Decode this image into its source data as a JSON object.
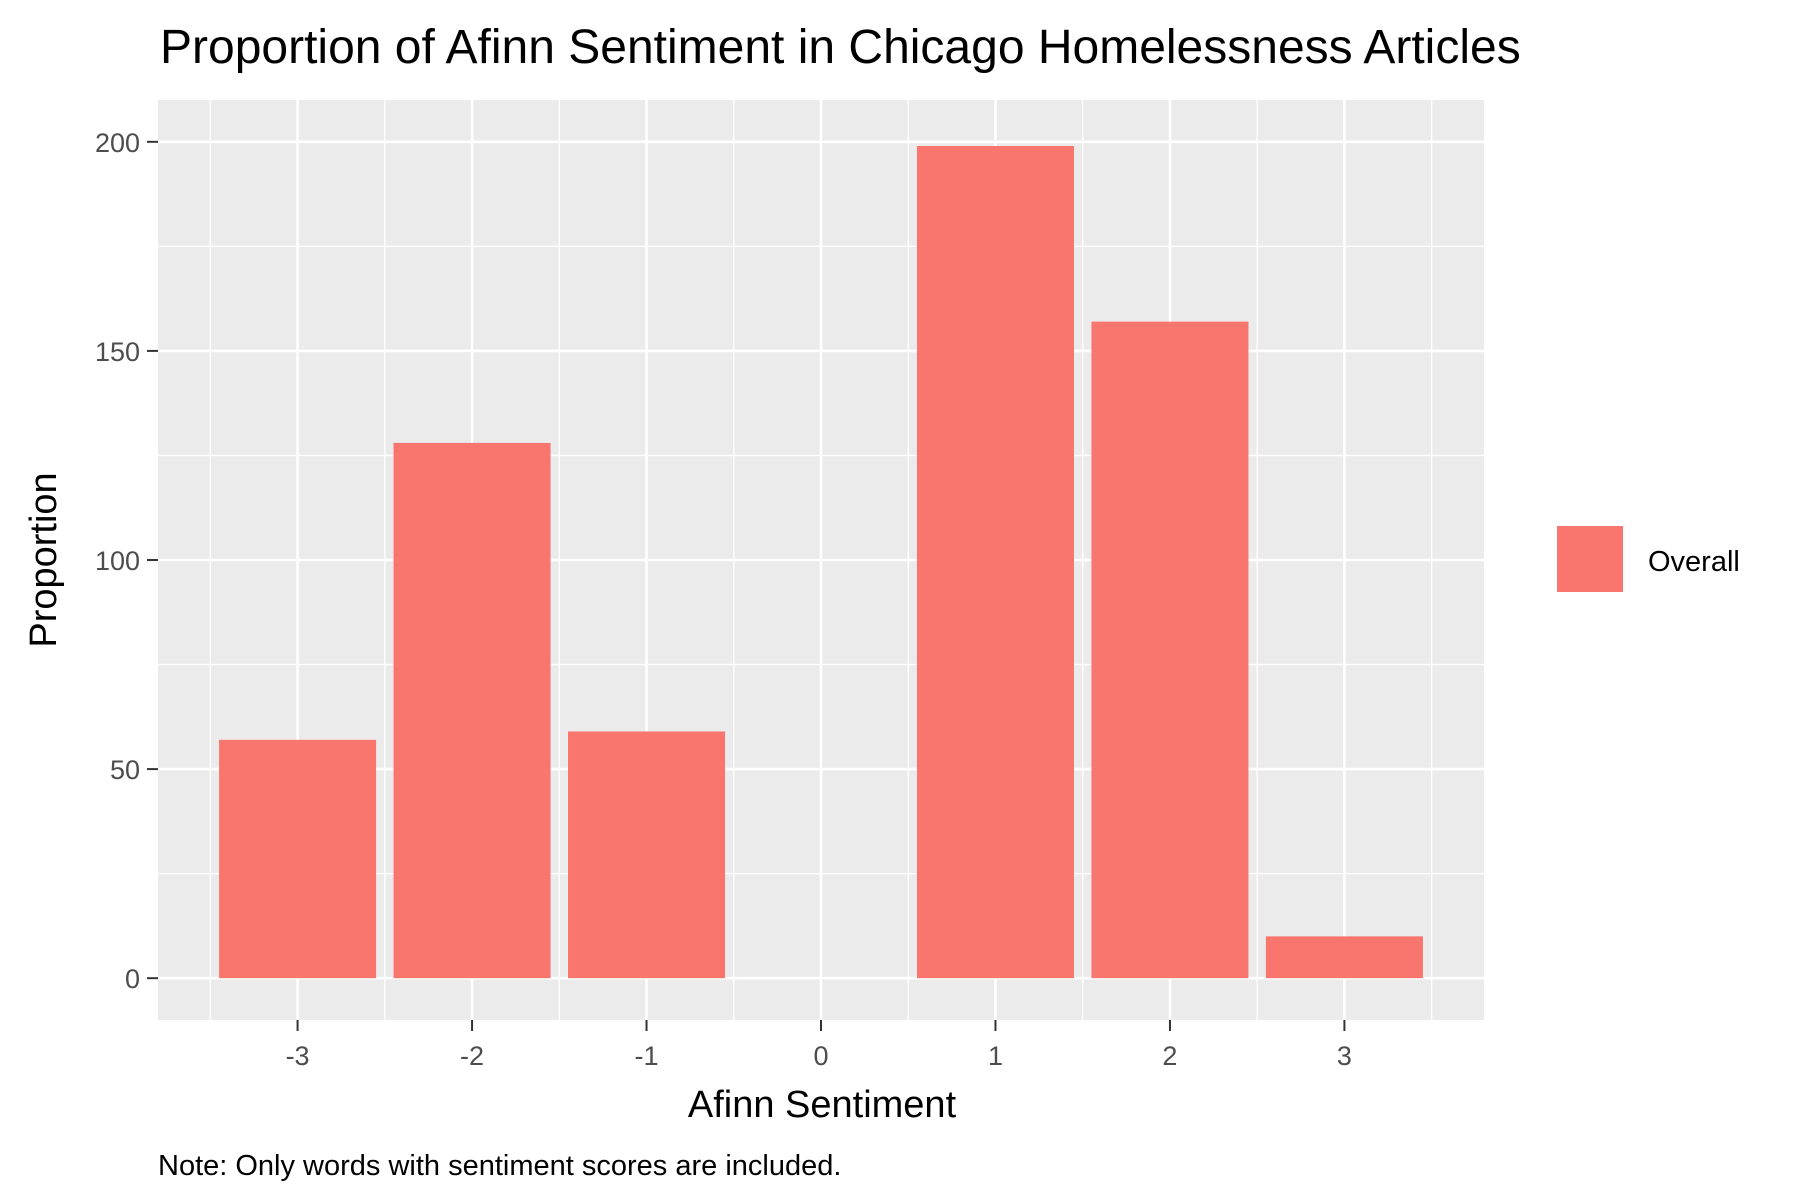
{
  "chart_data": {
    "type": "bar",
    "title": "Proportion of Afinn Sentiment in Chicago Homelessness Articles",
    "xlabel": "Afinn Sentiment",
    "ylabel": "Proportion",
    "caption": "Note: Only words with sentiment scores are included.",
    "x_ticks": [
      "-3",
      "-2",
      "-1",
      "0",
      "1",
      "2",
      "3"
    ],
    "y_ticks": [
      0,
      50,
      100,
      150,
      200
    ],
    "ylim": [
      -10,
      210
    ],
    "xlim": [
      -3.8,
      3.8
    ],
    "grid": true,
    "legend_position": "right",
    "series": [
      {
        "name": "Overall",
        "color": "#F8766D",
        "points": [
          {
            "x": -3,
            "y": 57
          },
          {
            "x": -2,
            "y": 128
          },
          {
            "x": -1,
            "y": 59
          },
          {
            "x": 1,
            "y": 199
          },
          {
            "x": 2,
            "y": 157
          },
          {
            "x": 3,
            "y": 10
          }
        ]
      }
    ]
  }
}
